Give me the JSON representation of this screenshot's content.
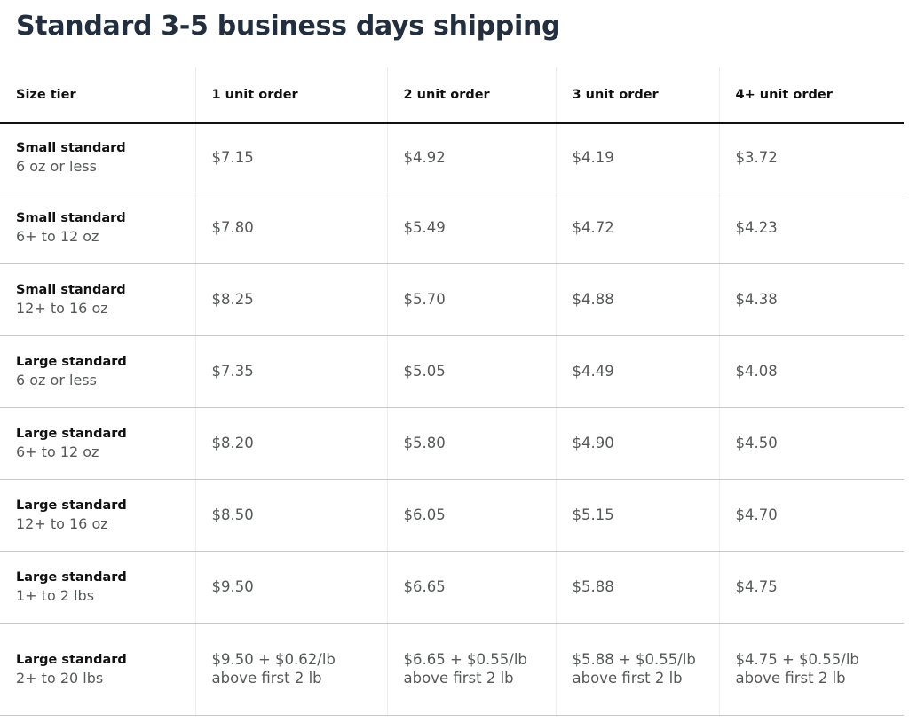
{
  "title": "Standard 3-5 business days shipping",
  "headers": [
    "Size tier",
    "1 unit order",
    "2 unit order",
    "3 unit order",
    "4+ unit order"
  ],
  "rows": [
    {
      "tier": "Small standard",
      "weight": "6 oz or less",
      "prices": [
        "$7.15",
        "$4.92",
        "$4.19",
        "$3.72"
      ]
    },
    {
      "tier": "Small standard",
      "weight": "6+ to 12 oz",
      "prices": [
        "$7.80",
        "$5.49",
        "$4.72",
        "$4.23"
      ]
    },
    {
      "tier": "Small standard",
      "weight": "12+ to 16 oz",
      "prices": [
        "$8.25",
        "$5.70",
        "$4.88",
        "$4.38"
      ]
    },
    {
      "tier": "Large standard",
      "weight": "6 oz or less",
      "prices": [
        "$7.35",
        "$5.05",
        "$4.49",
        "$4.08"
      ]
    },
    {
      "tier": "Large standard",
      "weight": "6+ to 12 oz",
      "prices": [
        "$8.20",
        "$5.80",
        "$4.90",
        "$4.50"
      ]
    },
    {
      "tier": "Large standard",
      "weight": "12+ to 16 oz",
      "prices": [
        "$8.50",
        "$6.05",
        "$5.15",
        "$4.70"
      ]
    },
    {
      "tier": "Large standard",
      "weight": "1+ to 2 lbs",
      "prices": [
        "$9.50",
        "$6.65",
        "$5.88",
        "$4.75"
      ]
    },
    {
      "tier": "Large standard",
      "weight": "2+ to 20 lbs",
      "prices": [
        "$9.50 + $0.62/lb",
        "$6.65 + $0.55/lb",
        "$5.88 + $0.55/lb",
        "$4.75 + $0.55/lb"
      ],
      "price_notes": [
        "above first 2 lb",
        "above first 2 lb",
        "above first 2 lb",
        "above first 2 lb"
      ]
    }
  ]
}
